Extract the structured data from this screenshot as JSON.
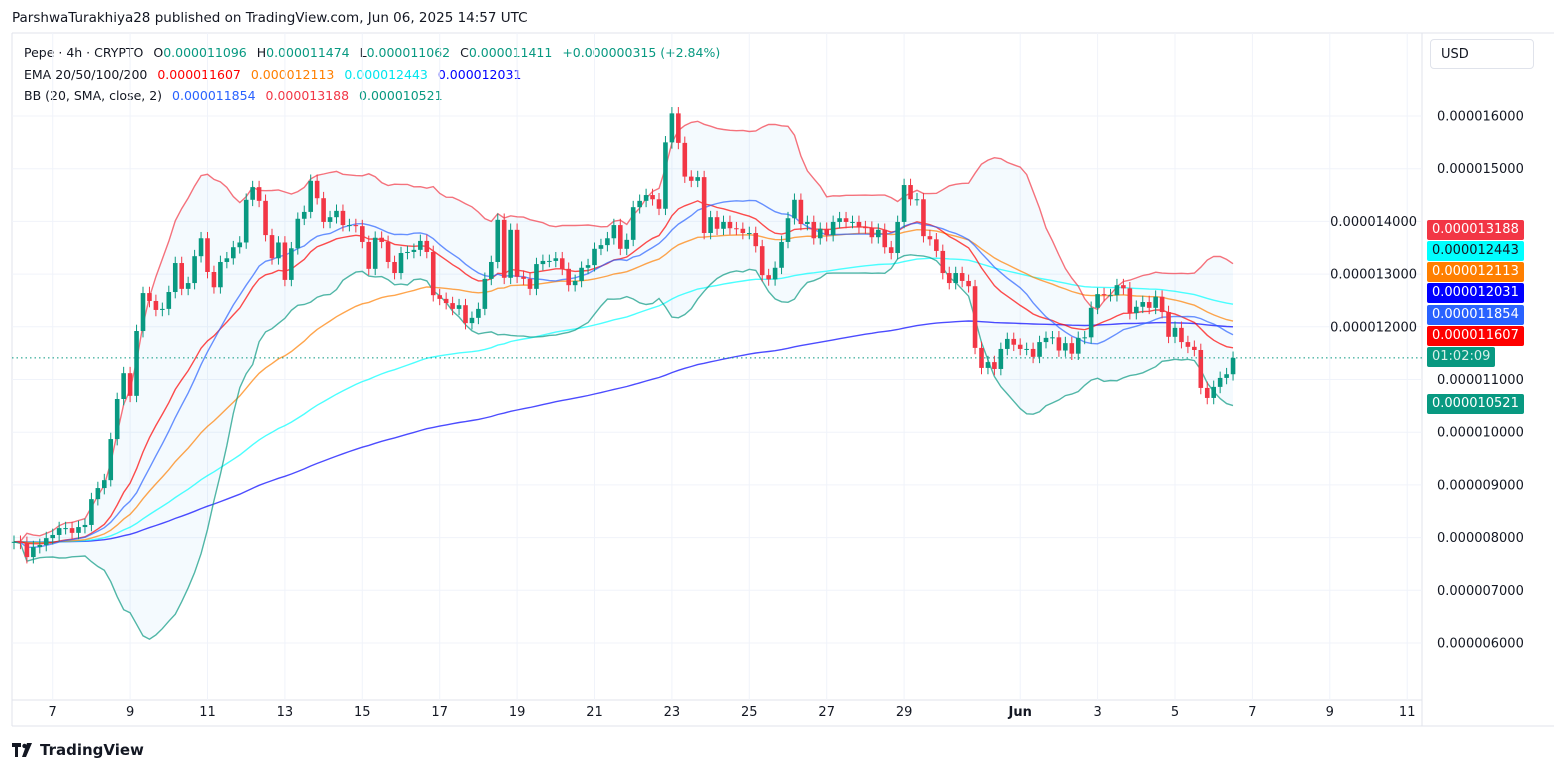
{
  "publication": "ParshwaTurakhiya28 published on TradingView.com, Jun 06, 2025 14:57 UTC",
  "legend": {
    "symbol": "Pepe · 4h · CRYPTO",
    "o_label": "O",
    "o": "0.000011096",
    "h_label": "H",
    "h": "0.000011474",
    "l_label": "L",
    "l": "0.000011062",
    "c_label": "C",
    "c": "0.000011411",
    "change": "+0.000000315 (+2.84%)"
  },
  "ema": {
    "label": "EMA 20/50/100/200",
    "values": [
      "0.000011607",
      "0.000012113",
      "0.000012443",
      "0.000012031"
    ]
  },
  "bb": {
    "label": "BB (20, SMA, close, 2)",
    "values": [
      "0.000011854",
      "0.000013188",
      "0.000010521"
    ]
  },
  "currency": "USD",
  "price_labels": [
    {
      "text": "0.000013188",
      "bg": "#f23645",
      "fg": "#ffffff"
    },
    {
      "text": "0.000012443",
      "bg": "#00ffff",
      "fg": "#131722"
    },
    {
      "text": "0.000012113",
      "bg": "#ff7f00",
      "fg": "#ffffff"
    },
    {
      "text": "0.000012031",
      "bg": "#0000ff",
      "fg": "#ffffff"
    },
    {
      "text": "0.000011854",
      "bg": "#2962ff",
      "fg": "#ffffff"
    },
    {
      "text": "0.000011607",
      "bg": "#ff0000",
      "fg": "#ffffff"
    },
    {
      "text": "01:02:09",
      "bg": "#089981",
      "fg": "#d8efe9"
    },
    {
      "text": "0.000010521",
      "bg": "#089981",
      "fg": "#ffffff"
    }
  ],
  "brand": "TradingView",
  "colors": {
    "up": "#089981",
    "down": "#f23645",
    "ema20": "#ff0000",
    "ema50": "#ff7f00",
    "ema100": "#00ffff",
    "ema200": "#0000ff",
    "bb_basis": "#2962ff",
    "bb_upper": "#f23645",
    "bb_lower": "#089981",
    "bb_fill": "#2196f3",
    "grid": "#f0f3fa"
  },
  "chart_data": {
    "type": "candlestick",
    "title": "Pepe · 4h · CRYPTO",
    "value_unit": "1e-6 USD",
    "start": "May 6 00:00",
    "interval_hours": 4,
    "open_rule": "open = previous close",
    "first_open": 7.9,
    "closes": [
      7.92,
      7.9,
      7.63,
      7.82,
      7.86,
      7.99,
      8.05,
      8.18,
      8.18,
      8.09,
      8.2,
      8.24,
      8.73,
      8.94,
      9.09,
      9.87,
      10.63,
      11.12,
      10.69,
      11.92,
      12.64,
      12.49,
      12.32,
      12.34,
      12.66,
      13.21,
      12.72,
      12.83,
      13.34,
      13.68,
      13.04,
      12.75,
      13.23,
      13.3,
      13.51,
      13.6,
      14.41,
      14.65,
      14.39,
      13.74,
      13.3,
      13.6,
      12.89,
      13.49,
      14.05,
      14.18,
      14.77,
      14.44,
      13.99,
      14.08,
      14.2,
      13.93,
      13.93,
      13.91,
      13.61,
      13.1,
      13.69,
      13.61,
      13.23,
      13.02,
      13.4,
      13.42,
      13.46,
      13.63,
      13.42,
      12.6,
      12.53,
      12.45,
      12.34,
      12.41,
      12.07,
      12.17,
      12.34,
      12.91,
      13.23,
      14.03,
      12.93,
      13.84,
      12.95,
      12.91,
      12.72,
      13.19,
      13.25,
      13.25,
      13.3,
      13.1,
      12.79,
      12.87,
      13.12,
      13.17,
      13.48,
      13.55,
      13.68,
      13.93,
      13.48,
      13.65,
      14.27,
      14.39,
      14.5,
      14.42,
      14.24,
      15.5,
      16.05,
      15.49,
      14.85,
      14.77,
      14.84,
      13.78,
      14.08,
      13.86,
      13.99,
      13.87,
      13.86,
      13.78,
      13.78,
      13.53,
      12.98,
      12.9,
      13.12,
      13.61,
      14.06,
      14.41,
      13.95,
      13.99,
      13.68,
      13.86,
      13.74,
      13.99,
      14.06,
      13.99,
      13.99,
      13.89,
      13.88,
      13.7,
      13.84,
      13.51,
      13.4,
      13.99,
      14.69,
      14.42,
      14.42,
      13.72,
      13.66,
      13.44,
      13.02,
      12.83,
      13.02,
      12.87,
      12.77,
      11.6,
      11.22,
      11.33,
      11.2,
      11.58,
      11.77,
      11.66,
      11.58,
      11.58,
      11.43,
      11.71,
      11.79,
      11.8,
      11.55,
      11.69,
      11.49,
      11.79,
      11.8,
      12.36,
      12.62,
      12.6,
      12.6,
      12.79,
      12.73,
      12.26,
      12.38,
      12.47,
      12.36,
      12.57,
      12.28,
      11.81,
      11.98,
      11.71,
      11.62,
      11.56,
      10.84,
      10.65,
      10.86,
      11.03,
      11.1,
      11.411
    ],
    "indicators": [
      {
        "name": "EMA 20",
        "period": 20,
        "last": 11.607
      },
      {
        "name": "EMA 50",
        "period": 50,
        "last": 12.113
      },
      {
        "name": "EMA 100",
        "period": 100,
        "last": 12.443
      },
      {
        "name": "EMA 200",
        "period": 200,
        "last": 12.031
      },
      {
        "name": "BB basis (SMA 20)",
        "last": 11.854
      },
      {
        "name": "BB upper",
        "last": 13.188
      },
      {
        "name": "BB lower",
        "last": 10.521
      }
    ],
    "y_ticks": [
      {
        "value": 16,
        "label": "0.000016000"
      },
      {
        "value": 15,
        "label": "0.000015000"
      },
      {
        "value": 14,
        "label": "0.000014000"
      },
      {
        "value": 13,
        "label": "0.000013000"
      },
      {
        "value": 12,
        "label": "0.000012000"
      },
      {
        "value": 11,
        "label": "0.000011000"
      },
      {
        "value": 10,
        "label": "0.000010000"
      },
      {
        "value": 9,
        "label": "0.000009000"
      },
      {
        "value": 8,
        "label": "0.000008000"
      },
      {
        "value": 7,
        "label": "0.000007000"
      },
      {
        "value": 6,
        "label": "0.000006000"
      }
    ],
    "x_ticks": [
      {
        "label": "7",
        "day": 1
      },
      {
        "label": "9",
        "day": 3
      },
      {
        "label": "11",
        "day": 5
      },
      {
        "label": "13",
        "day": 7
      },
      {
        "label": "15",
        "day": 9
      },
      {
        "label": "17",
        "day": 11
      },
      {
        "label": "19",
        "day": 13
      },
      {
        "label": "21",
        "day": 15
      },
      {
        "label": "23",
        "day": 17
      },
      {
        "label": "25",
        "day": 19
      },
      {
        "label": "27",
        "day": 21
      },
      {
        "label": "29",
        "day": 23
      },
      {
        "label": "Jun",
        "day": 26,
        "bold": true
      },
      {
        "label": "3",
        "day": 28
      },
      {
        "label": "5",
        "day": 30
      },
      {
        "label": "7",
        "day": 32
      },
      {
        "label": "9",
        "day": 34
      },
      {
        "label": "11",
        "day": 36
      }
    ],
    "current_price": 11.411
  }
}
